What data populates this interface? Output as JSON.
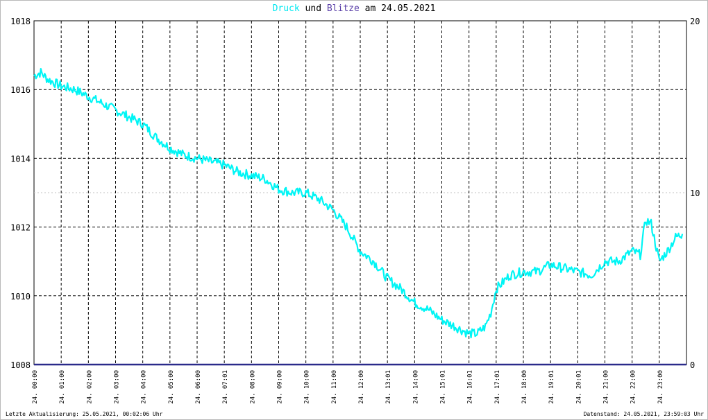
{
  "title": {
    "series1": "Druck",
    "connector1": "und",
    "series2": "Blitze",
    "connector2": "am",
    "date": "24.05.2021"
  },
  "footer": {
    "left": "Letzte Aktualisierung: 25.05.2021, 00:02:06 Uhr",
    "right": "Datenstand: 24.05.2021, 23:59:03 Uhr"
  },
  "colors": {
    "pressure": "#00f5f5",
    "lightning": "#2a2a8a",
    "grid": "#000000",
    "minor_grid": "#c0c0c0",
    "axis": "#000000"
  },
  "chart_data": {
    "type": "line",
    "x_range_hours": [
      0,
      24
    ],
    "grid": "on",
    "y_left": {
      "range": [
        1008,
        1018
      ],
      "ticks": [
        "1008",
        "1010",
        "1012",
        "1014",
        "1016",
        "1018"
      ]
    },
    "y_right": {
      "range": [
        0,
        20
      ],
      "ticks": [
        "0",
        "10",
        "20"
      ]
    },
    "x_tick_labels": [
      "24. 00:00",
      "24. 01:00",
      "24. 02:00",
      "24. 03:00",
      "24. 04:00",
      "24. 05:00",
      "24. 06:00",
      "24. 07:01",
      "24. 08:00",
      "24. 09:00",
      "24. 10:00",
      "24. 11:00",
      "24. 12:00",
      "24. 13:01",
      "24. 14:00",
      "24. 15:01",
      "24. 16:01",
      "24. 17:01",
      "24. 18:00",
      "24. 19:01",
      "24. 20:01",
      "24. 21:00",
      "24. 22:00",
      "24. 23:00"
    ],
    "series": [
      {
        "axis": "left",
        "x_hours": [
          0,
          0.25,
          0.5,
          1.0,
          1.5,
          2.0,
          2.5,
          3.0,
          3.5,
          4.0,
          4.5,
          5.0,
          5.5,
          6.0,
          6.5,
          7.0,
          7.5,
          8.0,
          8.5,
          9.0,
          9.5,
          10.0,
          10.5,
          11.0,
          11.5,
          12.0,
          12.5,
          13.0,
          13.5,
          14.0,
          14.5,
          15.0,
          15.5,
          16.0,
          16.3,
          16.6,
          16.8,
          17.0,
          17.5,
          18.0,
          18.5,
          19.0,
          19.5,
          20.0,
          20.5,
          21.0,
          21.5,
          22.0,
          22.3,
          22.5,
          22.7,
          23.0,
          23.3,
          23.6,
          23.85
        ],
        "values": [
          1016.4,
          1016.5,
          1016.3,
          1016.1,
          1016.0,
          1015.8,
          1015.6,
          1015.4,
          1015.2,
          1015.0,
          1014.6,
          1014.3,
          1014.1,
          1014.0,
          1013.9,
          1013.8,
          1013.6,
          1013.5,
          1013.4,
          1013.1,
          1013.0,
          1013.0,
          1012.8,
          1012.5,
          1012.0,
          1011.3,
          1011.0,
          1010.5,
          1010.2,
          1009.8,
          1009.6,
          1009.3,
          1009.1,
          1008.9,
          1008.9,
          1009.1,
          1009.5,
          1010.2,
          1010.6,
          1010.7,
          1010.7,
          1010.9,
          1010.8,
          1010.7,
          1010.6,
          1011.0,
          1011.0,
          1011.3,
          1011.2,
          1012.2,
          1012.1,
          1011.0,
          1011.3,
          1011.7,
          1011.8
        ]
      },
      {
        "axis": "right",
        "x_hours": [
          0,
          24
        ],
        "values": [
          0,
          0
        ]
      }
    ]
  }
}
